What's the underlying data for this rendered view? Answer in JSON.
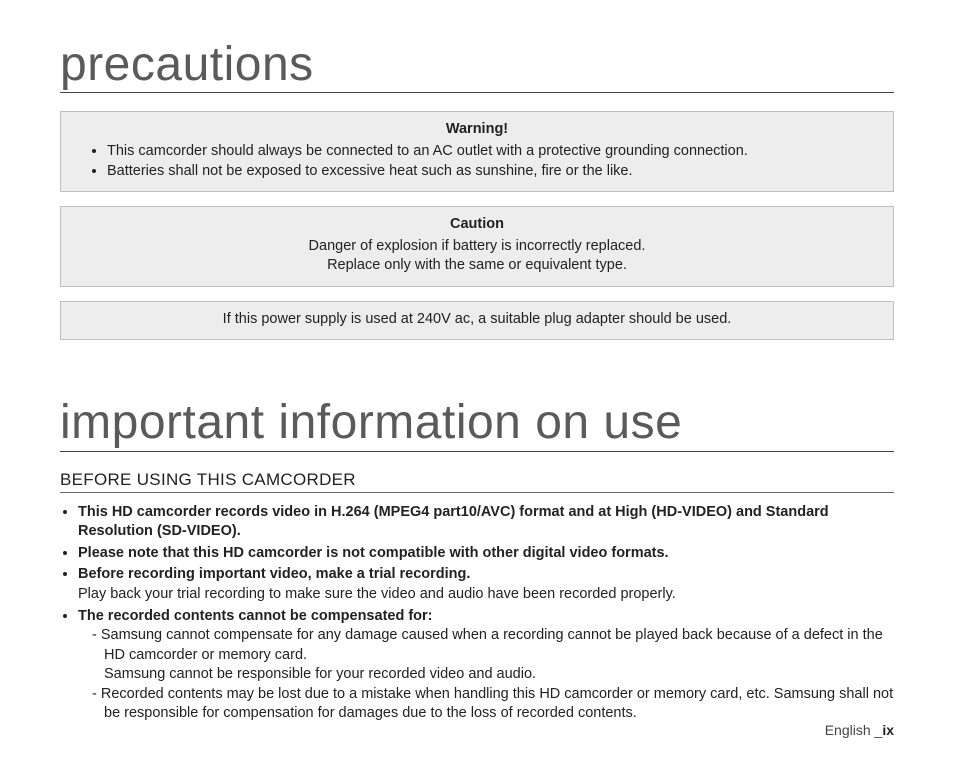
{
  "section1": {
    "title": "precautions"
  },
  "warning": {
    "title": "Warning!",
    "items": [
      "This camcorder should always be connected to an AC outlet with a protective grounding connection.",
      "Batteries shall not be exposed to excessive heat such as sunshine, fire or the like."
    ]
  },
  "caution": {
    "title": "Caution",
    "line1": "Danger of explosion if battery is incorrectly replaced.",
    "line2": "Replace only with the same or equivalent type."
  },
  "plug_note": {
    "text": "If this power supply is used at 240V ac, a suitable plug adapter should be used."
  },
  "section2": {
    "title": "important information on use"
  },
  "before": {
    "heading": "BEFORE USING THIS CAMCORDER",
    "b1": "This HD camcorder records video in H.264 (MPEG4 part10/AVC) format and at High (HD-VIDEO) and Standard Resolution (SD-VIDEO).",
    "b2": "Please note that this HD camcorder is not compatible with other digital video formats.",
    "b3_lead": "Before recording important video, make a trial recording.",
    "b3_body": "Play back your trial recording to make sure the video and audio have been recorded properly.",
    "b4_lead": "The recorded contents cannot be compensated for:",
    "b4_d1": "-   Samsung cannot compensate for any damage caused when a recording cannot be played back because of a defect in the HD camcorder or memory card.",
    "b4_d1b": "Samsung cannot be responsible for your recorded video and audio.",
    "b4_d2": "-   Recorded contents may be lost due to a mistake when handling this HD camcorder or memory card, etc. Samsung shall not be responsible for compensation for damages due to the loss of recorded contents."
  },
  "footer": {
    "lang": "English _",
    "page": "ix"
  },
  "colors": {
    "bg": "#ffffff",
    "box_bg": "#ededed",
    "box_border": "#bfbfbf",
    "heading_text": "#5a5a5a",
    "rule": "#444444",
    "body_text": "#222222"
  },
  "fonts": {
    "heading_size_pt": 36,
    "subheading_size_pt": 13,
    "body_size_pt": 11
  }
}
